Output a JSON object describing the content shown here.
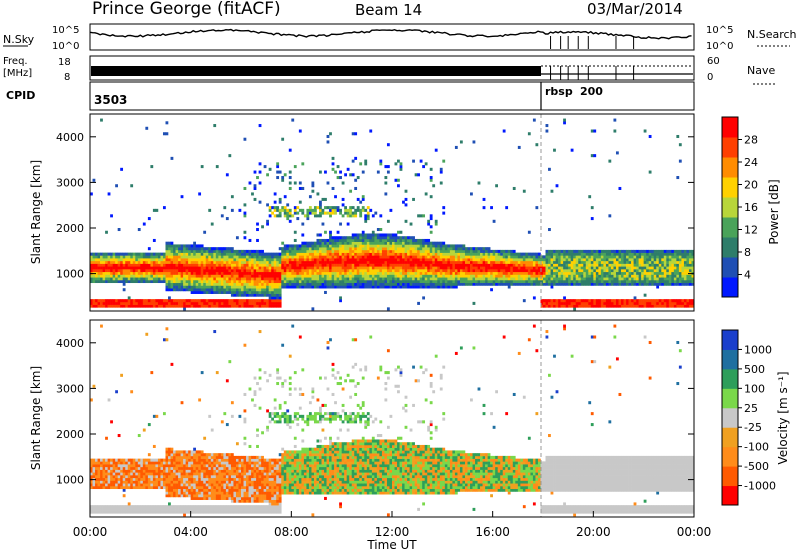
{
  "header": {
    "title": "Prince George (fitACF)",
    "beam": "Beam 14",
    "date": "03/Mar/2014"
  },
  "status_panel": {
    "nsky_label": "N.Sky",
    "nsky_ticks": [
      "10^5",
      "10^0"
    ],
    "nsearch_label": "N.Search",
    "nsearch_ticks": [
      "10^5",
      "10^0"
    ],
    "freq_label": [
      "Freq.",
      "[MHz]"
    ],
    "freq_ticks": [
      "18",
      "8"
    ],
    "nave_label": "Nave",
    "nave_ticks": [
      "60",
      "0"
    ],
    "cpid_label": "CPID",
    "cpid_values": [
      "3503",
      "rbsp",
      "200"
    ]
  },
  "colors": {
    "power_scale": [
      "#0018ff",
      "#1f4fb4",
      "#2e7d6a",
      "#4aa35a",
      "#b8d63a",
      "#ffd100",
      "#ff8c00",
      "#ff4000",
      "#ff0000"
    ],
    "velocity_scale": [
      "#ff0000",
      "#ff5a00",
      "#ff8c1a",
      "#f0a020",
      "#c8c8c8",
      "#7ad84a",
      "#2e9e5a",
      "#1f6fa0",
      "#1a3fcc"
    ],
    "ground_scatter": "#c8c8c8"
  },
  "chart_data": [
    {
      "type": "heatmap",
      "name": "power",
      "ylabel": "Slant Range [km]",
      "yticks": [
        1000,
        2000,
        3000,
        4000
      ],
      "ylim": [
        180,
        4500
      ],
      "xlim": [
        0,
        24
      ],
      "colorbar": {
        "label": "Power [dB]",
        "ticks": [
          "4",
          "8",
          "12",
          "16",
          "20",
          "24",
          "28"
        ],
        "range": [
          0,
          30
        ]
      }
    },
    {
      "type": "heatmap",
      "name": "velocity",
      "ylabel": "Slant Range [km]",
      "yticks": [
        1000,
        2000,
        3000,
        4000
      ],
      "ylim": [
        180,
        4500
      ],
      "xlim": [
        0,
        24
      ],
      "xlabel": "Time UT",
      "xticks": [
        "00:00",
        "04:00",
        "08:00",
        "12:00",
        "16:00",
        "20:00",
        "00:00"
      ],
      "colorbar": {
        "label": "Velocity [m s⁻¹]",
        "ticks": [
          "1000",
          "500",
          "100",
          "25",
          "-25",
          "-100",
          "-500",
          "-1000"
        ]
      }
    }
  ]
}
